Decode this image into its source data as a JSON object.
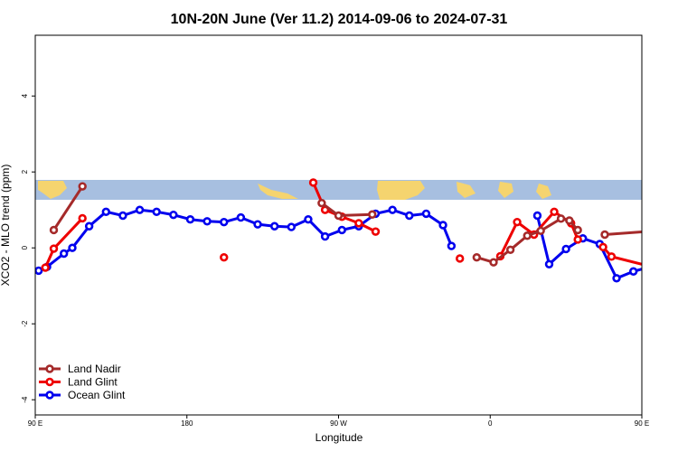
{
  "chart_data": {
    "type": "line",
    "title": "10N-20N June (Ver 11.2)   2014-09-06 to 2024-07-31",
    "xlabel": "Longitude",
    "ylabel": "XCO2 - MLO trend (ppm)",
    "xlim": [
      90,
      450
    ],
    "ylim": [
      -4.4,
      5.6
    ],
    "x_ticks": [
      {
        "value": 90,
        "label": "90 E"
      },
      {
        "value": 180,
        "label": "180"
      },
      {
        "value": 270,
        "label": "90 W"
      },
      {
        "value": 360,
        "label": "0"
      },
      {
        "value": 450,
        "label": "90 E"
      },
      {
        "value": 540,
        "label": "180"
      }
    ],
    "y_ticks": [
      {
        "value": -4,
        "label": "-4"
      },
      {
        "value": -2,
        "label": "-2"
      },
      {
        "value": 0,
        "label": "0"
      },
      {
        "value": 2,
        "label": "2"
      },
      {
        "value": 4,
        "label": "4"
      }
    ],
    "map_band": {
      "ymin": 1.15,
      "ymax": 1.7,
      "ocean_color": "#a7bfe0",
      "land_color": "#f5d46f"
    },
    "legend_position": "bottom-left",
    "series": [
      {
        "name": "Ocean Glint",
        "color": "#0000ee",
        "points": [
          [
            92,
            -0.6
          ],
          [
            97,
            -0.5
          ],
          [
            107,
            -0.15
          ],
          [
            112,
            0.0
          ],
          [
            122,
            0.57
          ],
          [
            132,
            0.95
          ],
          [
            142,
            0.85
          ],
          [
            152,
            1.0
          ],
          [
            162,
            0.95
          ],
          [
            172,
            0.87
          ],
          [
            182,
            0.75
          ],
          [
            192,
            0.7
          ],
          [
            202,
            0.68
          ],
          [
            212,
            0.8
          ],
          [
            222,
            0.62
          ],
          [
            232,
            0.57
          ],
          [
            242,
            0.55
          ],
          [
            252,
            0.75
          ],
          [
            262,
            0.3
          ],
          [
            272,
            0.47
          ],
          [
            282,
            0.57
          ],
          [
            292,
            0.9
          ],
          [
            302,
            1.0
          ],
          [
            312,
            0.85
          ],
          [
            322,
            0.9
          ],
          [
            332,
            0.6
          ],
          [
            337,
            0.05
          ],
          null,
          [
            388,
            0.85
          ],
          [
            395,
            -0.43
          ],
          [
            405,
            -0.03
          ],
          [
            415,
            0.25
          ],
          [
            425,
            0.1
          ],
          [
            435,
            -0.8
          ],
          [
            445,
            -0.62
          ],
          [
            455,
            -0.5
          ],
          [
            465,
            -0.15
          ],
          [
            475,
            0.0
          ],
          [
            485,
            0.57
          ],
          [
            495,
            0.95
          ],
          [
            505,
            0.85
          ],
          [
            515,
            1.0
          ],
          [
            525,
            0.95
          ],
          [
            535,
            0.87
          ]
        ]
      },
      {
        "name": "Land Glint",
        "color": "#ee0000",
        "points": [
          [
            96,
            -0.52
          ],
          [
            101,
            -0.02
          ],
          [
            118,
            0.78
          ],
          null,
          [
            202,
            -0.25
          ],
          null,
          [
            255,
            1.72
          ],
          [
            262,
            1.0
          ],
          [
            272,
            0.82
          ],
          [
            282,
            0.65
          ],
          [
            292,
            0.43
          ],
          null,
          [
            342,
            -0.28
          ],
          null,
          [
            366,
            -0.22
          ],
          [
            376,
            0.68
          ],
          [
            386,
            0.35
          ],
          [
            398,
            0.95
          ],
          [
            408,
            0.65
          ],
          [
            412,
            0.22
          ],
          null,
          [
            427,
            0.02
          ],
          [
            432,
            -0.23
          ],
          [
            458,
            -0.52
          ],
          [
            462,
            0.0
          ],
          [
            477,
            0.78
          ]
        ]
      },
      {
        "name": "Land Nadir",
        "color": "#a52a2a",
        "points": [
          [
            101,
            0.47
          ],
          [
            118,
            1.62
          ],
          null,
          [
            260,
            1.18
          ],
          [
            270,
            0.85
          ],
          [
            290,
            0.88
          ],
          null,
          [
            352,
            -0.25
          ],
          [
            362,
            -0.38
          ],
          [
            372,
            -0.05
          ],
          [
            382,
            0.32
          ],
          [
            390,
            0.45
          ],
          [
            402,
            0.77
          ],
          [
            407,
            0.72
          ],
          [
            412,
            0.47
          ],
          null,
          [
            428,
            0.35
          ],
          [
            465,
            0.47
          ],
          [
            482,
            1.62
          ]
        ]
      }
    ]
  }
}
